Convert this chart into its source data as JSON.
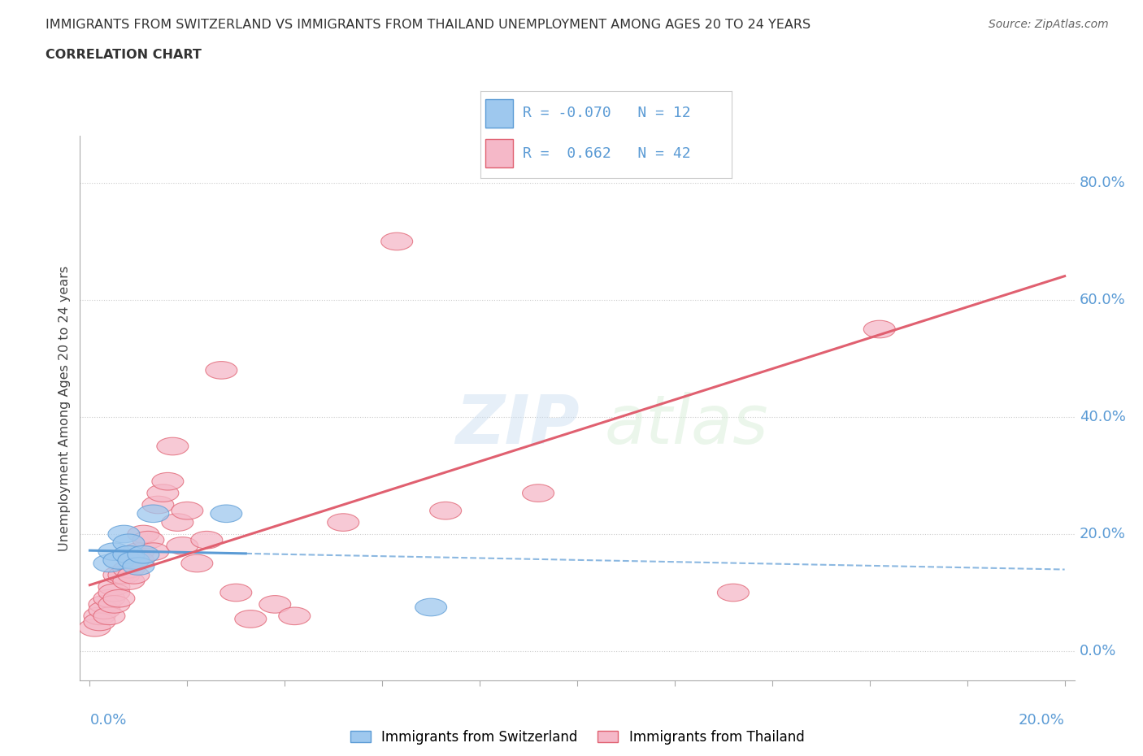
{
  "title_line1": "IMMIGRANTS FROM SWITZERLAND VS IMMIGRANTS FROM THAILAND UNEMPLOYMENT AMONG AGES 20 TO 24 YEARS",
  "title_line2": "CORRELATION CHART",
  "source": "Source: ZipAtlas.com",
  "ylabel": "Unemployment Among Ages 20 to 24 years",
  "ytick_labels": [
    "0.0%",
    "20.0%",
    "40.0%",
    "60.0%",
    "80.0%"
  ],
  "ytick_values": [
    0.0,
    0.2,
    0.4,
    0.6,
    0.8
  ],
  "xlim": [
    -0.002,
    0.202
  ],
  "ylim": [
    -0.05,
    0.88
  ],
  "r_swiss": -0.07,
  "n_swiss": 12,
  "r_thai": 0.662,
  "n_thai": 42,
  "color_swiss": "#9EC8EE",
  "color_swiss_edge": "#5B9BD5",
  "color_thai": "#F5B8C8",
  "color_thai_edge": "#E06070",
  "color_swiss_line": "#5B9BD5",
  "color_thai_line": "#E06070",
  "color_label": "#5B9BD5",
  "swiss_x": [
    0.004,
    0.005,
    0.006,
    0.007,
    0.008,
    0.008,
    0.009,
    0.01,
    0.011,
    0.013,
    0.028,
    0.07
  ],
  "swiss_y": [
    0.15,
    0.17,
    0.155,
    0.2,
    0.185,
    0.165,
    0.155,
    0.145,
    0.165,
    0.235,
    0.235,
    0.075
  ],
  "thai_x": [
    0.001,
    0.002,
    0.002,
    0.003,
    0.003,
    0.004,
    0.004,
    0.005,
    0.005,
    0.005,
    0.006,
    0.006,
    0.007,
    0.008,
    0.008,
    0.009,
    0.009,
    0.01,
    0.01,
    0.011,
    0.012,
    0.013,
    0.014,
    0.015,
    0.016,
    0.017,
    0.018,
    0.019,
    0.02,
    0.022,
    0.024,
    0.027,
    0.03,
    0.033,
    0.038,
    0.042,
    0.052,
    0.063,
    0.073,
    0.092,
    0.132,
    0.162
  ],
  "thai_y": [
    0.04,
    0.06,
    0.05,
    0.08,
    0.07,
    0.09,
    0.06,
    0.11,
    0.1,
    0.08,
    0.13,
    0.09,
    0.13,
    0.14,
    0.12,
    0.16,
    0.13,
    0.17,
    0.155,
    0.2,
    0.19,
    0.17,
    0.25,
    0.27,
    0.29,
    0.35,
    0.22,
    0.18,
    0.24,
    0.15,
    0.19,
    0.48,
    0.1,
    0.055,
    0.08,
    0.06,
    0.22,
    0.7,
    0.24,
    0.27,
    0.1,
    0.55
  ]
}
